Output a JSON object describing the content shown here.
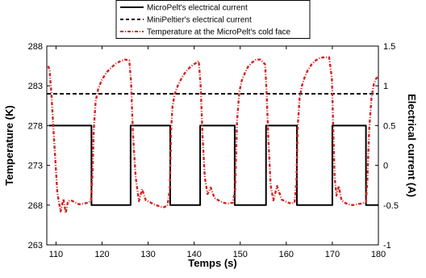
{
  "chart_data": {
    "type": "line",
    "xlabel": "Temps (s)",
    "ylabel_left": "Temperature (K)",
    "ylabel_right": "Electrical current (A)",
    "xlim": [
      108,
      180
    ],
    "ylim_left": [
      263,
      288
    ],
    "ylim_right": [
      -1,
      1.5
    ],
    "xticks": [
      "110",
      "120",
      "130",
      "140",
      "150",
      "160",
      "170",
      "180"
    ],
    "yticks_left": [
      "263",
      "268",
      "273",
      "278",
      "283",
      "288"
    ],
    "yticks_right": [
      "-1",
      "-0.5",
      "0",
      "0.5",
      "1",
      "1.5"
    ],
    "grid": false,
    "legend_position": "top-center",
    "series": [
      {
        "name": "MicroPelt's electrical current",
        "axis": "right",
        "color": "#000000",
        "style": "solid",
        "x": [
          108.5,
          117.7,
          117.7,
          126.2,
          126.2,
          134.8,
          134.8,
          141.3,
          141.3,
          148.8,
          148.8,
          155.6,
          155.6,
          162.3,
          162.3,
          170.0,
          170.0,
          177.3,
          177.3,
          180
        ],
        "y": [
          0.5,
          0.5,
          -0.5,
          -0.5,
          0.5,
          0.5,
          -0.5,
          -0.5,
          0.5,
          0.5,
          -0.5,
          -0.5,
          0.5,
          0.5,
          -0.5,
          -0.5,
          0.5,
          0.5,
          -0.5,
          -0.5
        ]
      },
      {
        "name": "MiniPeltier's electrical current",
        "axis": "right",
        "color": "#000000",
        "style": "dashed",
        "x": [
          108,
          180
        ],
        "y": [
          0.9,
          0.9
        ]
      },
      {
        "name": "Temperature at the MicroPelt's cold face",
        "axis": "left",
        "color": "#d42424",
        "style": "dash-dot",
        "x": [
          108.3,
          108.6,
          109.0,
          109.6,
          110.3,
          111.0,
          111.6,
          112.1,
          112.6,
          113.2,
          114.0,
          115.0,
          116.0,
          117.0,
          117.6,
          117.9,
          118.2,
          118.6,
          119.2,
          120.0,
          121.0,
          122.0,
          123.0,
          124.0,
          125.0,
          125.9,
          126.3,
          126.7,
          127.3,
          128.0,
          128.7,
          129.5,
          130.3,
          131.2,
          132.2,
          133.2,
          134.2,
          134.7,
          135.0,
          135.3,
          135.8,
          136.5,
          137.3,
          138.2,
          139.2,
          140.2,
          141.0,
          141.4,
          141.8,
          142.3,
          142.9,
          143.6,
          144.4,
          145.3,
          146.3,
          147.3,
          148.4,
          148.9,
          149.3,
          149.8,
          150.3,
          151.0,
          151.7,
          152.5,
          153.4,
          154.4,
          155.4,
          155.7,
          156.1,
          156.6,
          157.2,
          158.0,
          159.0,
          160.0,
          161.0,
          161.8,
          162.2,
          162.5,
          162.9,
          163.4,
          164.0,
          164.7,
          165.5,
          166.4,
          167.3,
          168.3,
          169.3,
          169.9,
          170.2,
          170.5,
          170.9,
          171.4,
          172.0,
          172.7,
          173.5,
          174.4,
          175.3,
          176.3,
          177.3,
          177.6,
          178.0,
          178.5,
          179.0,
          179.5,
          180.0
        ],
        "y": [
          285.5,
          285.0,
          282.0,
          276.0,
          269.5,
          267.2,
          268.8,
          267.0,
          268.5,
          268.6,
          268.4,
          268.1,
          268.2,
          268.3,
          268.6,
          271.5,
          277.5,
          281.0,
          282.7,
          283.8,
          284.7,
          285.3,
          285.8,
          286.1,
          286.3,
          286.2,
          283.5,
          277.0,
          271.5,
          268.5,
          270.0,
          268.6,
          268.4,
          268.1,
          267.9,
          267.7,
          267.9,
          270.0,
          277.5,
          280.5,
          282.0,
          283.1,
          284.0,
          284.8,
          285.4,
          285.8,
          286.1,
          283.0,
          277.0,
          271.5,
          269.4,
          270.2,
          268.9,
          268.6,
          268.3,
          268.2,
          268.3,
          270.0,
          278.5,
          282.2,
          283.6,
          284.6,
          285.4,
          285.9,
          286.3,
          286.3,
          285.7,
          282.5,
          276.5,
          270.5,
          268.6,
          270.4,
          268.7,
          268.4,
          268.2,
          268.3,
          271.0,
          278.0,
          281.5,
          283.0,
          284.1,
          285.0,
          285.7,
          286.2,
          286.5,
          286.6,
          286.6,
          284.0,
          277.5,
          271.5,
          269.2,
          270.4,
          268.6,
          268.3,
          268.1,
          268.0,
          268.1,
          268.2,
          268.4,
          271.0,
          277.5,
          281.5,
          283.2,
          283.9,
          284.2
        ]
      }
    ]
  }
}
